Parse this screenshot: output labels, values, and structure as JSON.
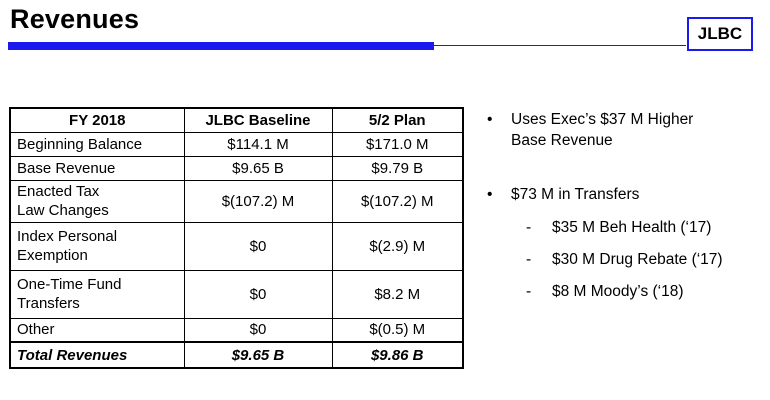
{
  "header": {
    "title": "Revenues",
    "logo_text": "JLBC"
  },
  "table": {
    "columns": [
      "FY 2018",
      "JLBC Baseline",
      "5/2 Plan"
    ],
    "rows": [
      {
        "label_line1": "Beginning Balance",
        "label_line2": "",
        "baseline": "$114.1 M",
        "plan": "$171.0 M"
      },
      {
        "label_line1": "Base Revenue",
        "label_line2": "",
        "baseline": "$9.65 B",
        "plan": "$9.79 B"
      },
      {
        "label_line1": "Enacted Tax",
        "label_line2": "Law Changes",
        "baseline": "$(107.2) M",
        "plan": "$(107.2) M"
      },
      {
        "label_line1": "Index Personal",
        "label_line2": "Exemption",
        "baseline": "$0",
        "plan": "$(2.9) M"
      },
      {
        "label_line1": "One-Time Fund",
        "label_line2": "Transfers",
        "baseline": "$0",
        "plan": "$8.2 M"
      },
      {
        "label_line1": "Other",
        "label_line2": "",
        "baseline": "$0",
        "plan": "$(0.5) M"
      }
    ],
    "total": {
      "label": "Total Revenues",
      "baseline": "$9.65 B",
      "plan": "$9.86 B"
    }
  },
  "bullets": [
    {
      "marker": "•",
      "line1": "Uses Exec’s $37 M Higher",
      "line2": "Base Revenue"
    },
    {
      "marker": "•",
      "line1": "$73 M in Transfers",
      "line2": ""
    }
  ],
  "sub_bullets": [
    {
      "marker": "-",
      "text": "$35 M Beh Health (‘17)"
    },
    {
      "marker": "-",
      "text": "$30 M Drug Rebate (‘17)"
    },
    {
      "marker": "-",
      "text": "$8 M Moody’s (‘18)"
    }
  ]
}
